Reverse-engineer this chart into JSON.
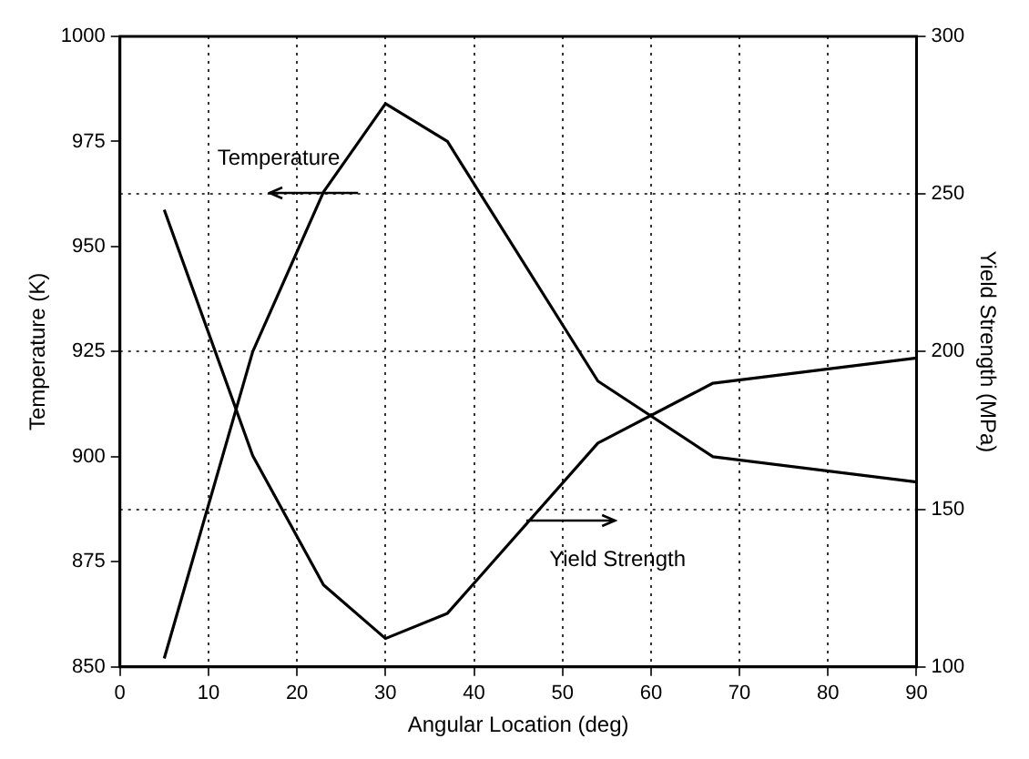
{
  "chart_data": {
    "type": "line",
    "xlabel": "Angular Location (deg)",
    "ylabel": "Temperature (K)",
    "y2label": "Yield Strength (MPa)",
    "xlim": [
      0,
      90
    ],
    "xticks": [
      0,
      10,
      20,
      30,
      40,
      50,
      60,
      70,
      80,
      90
    ],
    "ylim": [
      850,
      1000
    ],
    "yticks": [
      850,
      875,
      900,
      925,
      950,
      975,
      1000
    ],
    "y2lim": [
      100,
      300
    ],
    "y2ticks": [
      100,
      150,
      200,
      250,
      300
    ],
    "grid": true,
    "marker": "none",
    "line_style": "solid",
    "series": [
      {
        "name": "Temperature",
        "color": "#000000",
        "x": [
          5,
          15,
          23,
          30,
          37,
          54,
          67,
          90
        ],
        "values": [
          852,
          925,
          963,
          984,
          975,
          918,
          900,
          894
        ]
      },
      {
        "name": "Yield Strength",
        "color": "#000000",
        "axis": "y2",
        "x": [
          5,
          15,
          23,
          30,
          37,
          54,
          67,
          90
        ],
        "values": [
          245,
          167,
          126,
          109,
          117,
          171,
          190,
          198
        ]
      }
    ]
  }
}
